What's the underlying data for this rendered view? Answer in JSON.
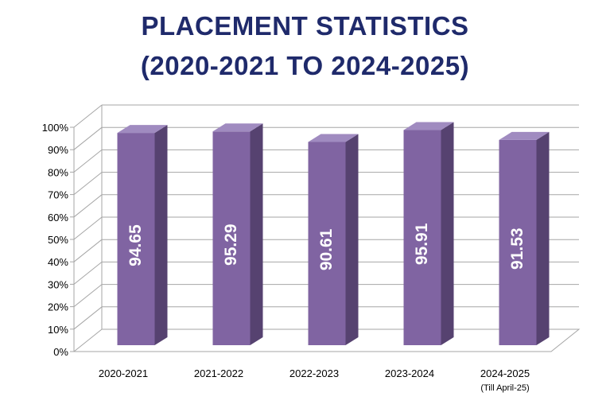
{
  "chart_data": {
    "type": "bar",
    "title": [
      "PLACEMENT STATISTICS",
      "(2020-2021 TO 2024-2025)"
    ],
    "categories": [
      {
        "label": "2020-2021",
        "sub": ""
      },
      {
        "label": "2021-2022",
        "sub": ""
      },
      {
        "label": "2022-2023",
        "sub": ""
      },
      {
        "label": "2023-2024",
        "sub": ""
      },
      {
        "label": "2024-2025",
        "sub": "(Till April-25)"
      }
    ],
    "values": [
      94.65,
      95.29,
      90.61,
      95.91,
      91.53
    ],
    "data_labels": [
      "94.65",
      "95.29",
      "90.61",
      "95.91",
      "91.53"
    ],
    "y_ticks": [
      "0%",
      "10%",
      "20%",
      "30%",
      "40%",
      "50%",
      "60%",
      "70%",
      "80%",
      "90%",
      "100%"
    ],
    "ylim": [
      0,
      100
    ],
    "grid": true,
    "style": "3d-column",
    "colors": {
      "bar_front": "#8064a2",
      "bar_side": "#564270",
      "bar_top": "#a08bc0",
      "grid": "#a6a6a6",
      "title": "#1f2a6b"
    }
  }
}
